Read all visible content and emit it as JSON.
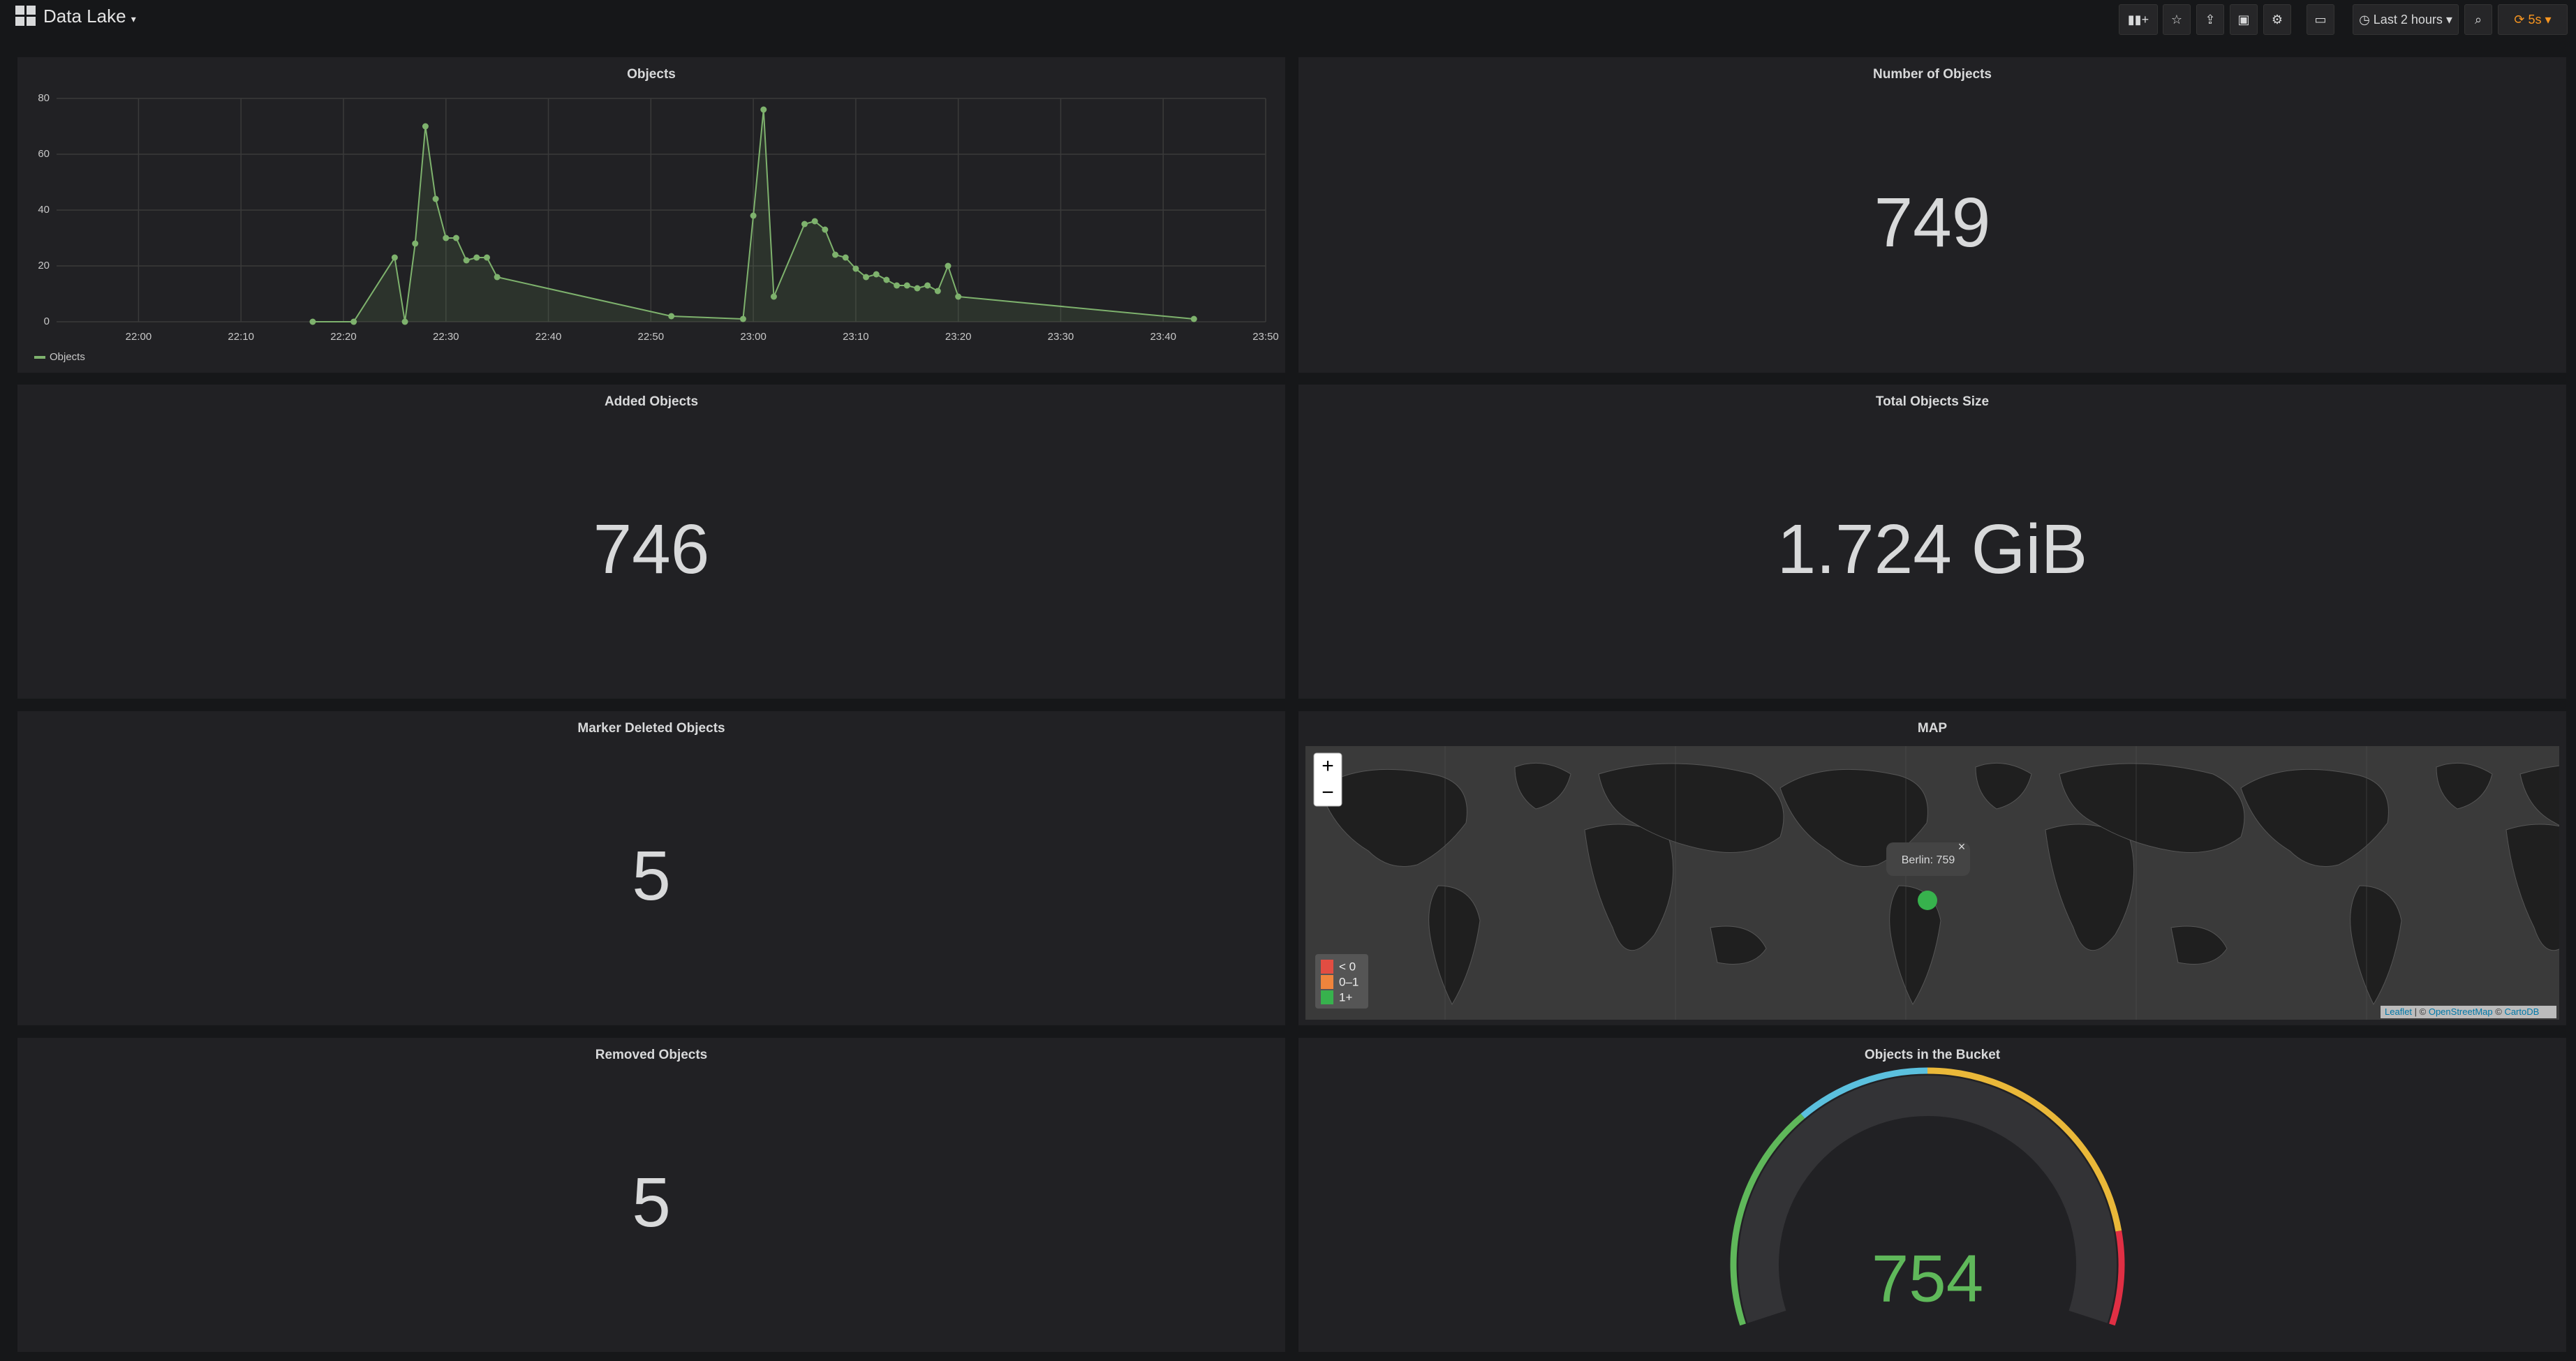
{
  "header": {
    "title": "Data Lake",
    "time_range": "Last 2 hours",
    "refresh": "5s"
  },
  "objects_chart": {
    "type": "line",
    "title": "Objects",
    "x": [
      "22:17",
      "22:21",
      "22:25",
      "22:26",
      "22:27",
      "22:28",
      "22:29",
      "22:30",
      "22:31",
      "22:32",
      "22:33",
      "22:34",
      "22:35",
      "22:52",
      "22:59",
      "23:00",
      "23:01",
      "23:02",
      "23:05",
      "23:06",
      "23:07",
      "23:08",
      "23:09",
      "23:10",
      "23:11",
      "23:12",
      "23:13",
      "23:14",
      "23:15",
      "23:16",
      "23:17",
      "23:18",
      "23:19",
      "23:20",
      "23:43"
    ],
    "series": [
      {
        "name": "Objects",
        "color": "#7eb26d",
        "values": [
          0,
          0,
          23,
          0,
          28,
          70,
          44,
          30,
          30,
          22,
          23,
          23,
          16,
          2,
          1,
          38,
          76,
          9,
          35,
          36,
          33,
          24,
          23,
          19,
          16,
          17,
          15,
          13,
          13,
          12,
          13,
          11,
          20,
          9,
          1
        ]
      }
    ],
    "xlim": [
      "21:52",
      "23:50"
    ],
    "xticks": [
      "22:00",
      "22:10",
      "22:20",
      "22:30",
      "22:40",
      "22:50",
      "23:00",
      "23:10",
      "23:20",
      "23:30",
      "23:40",
      "23:50"
    ],
    "ylim": [
      0,
      80
    ],
    "yticks": [
      0,
      20,
      40,
      60,
      80
    ],
    "grid": true
  },
  "stats": [
    {
      "title": "Number of Objects",
      "value": 749
    },
    {
      "title": "Added Objects",
      "value": 746
    },
    {
      "title": "Total Objects Size",
      "value": "1.724 GiB"
    },
    {
      "title": "Marker Deleted Objects",
      "value": 5
    },
    {
      "title": "Removed Objects",
      "value": 5
    }
  ],
  "map": {
    "title": "MAP",
    "tooltip": "Berlin: 759",
    "legend": [
      "< 0",
      "0–1",
      "1+"
    ],
    "attribution": [
      "Leaflet",
      "OpenStreetMap",
      "CartoDB"
    ]
  },
  "gauge": {
    "title": "Objects in the Bucket",
    "value": 754
  }
}
